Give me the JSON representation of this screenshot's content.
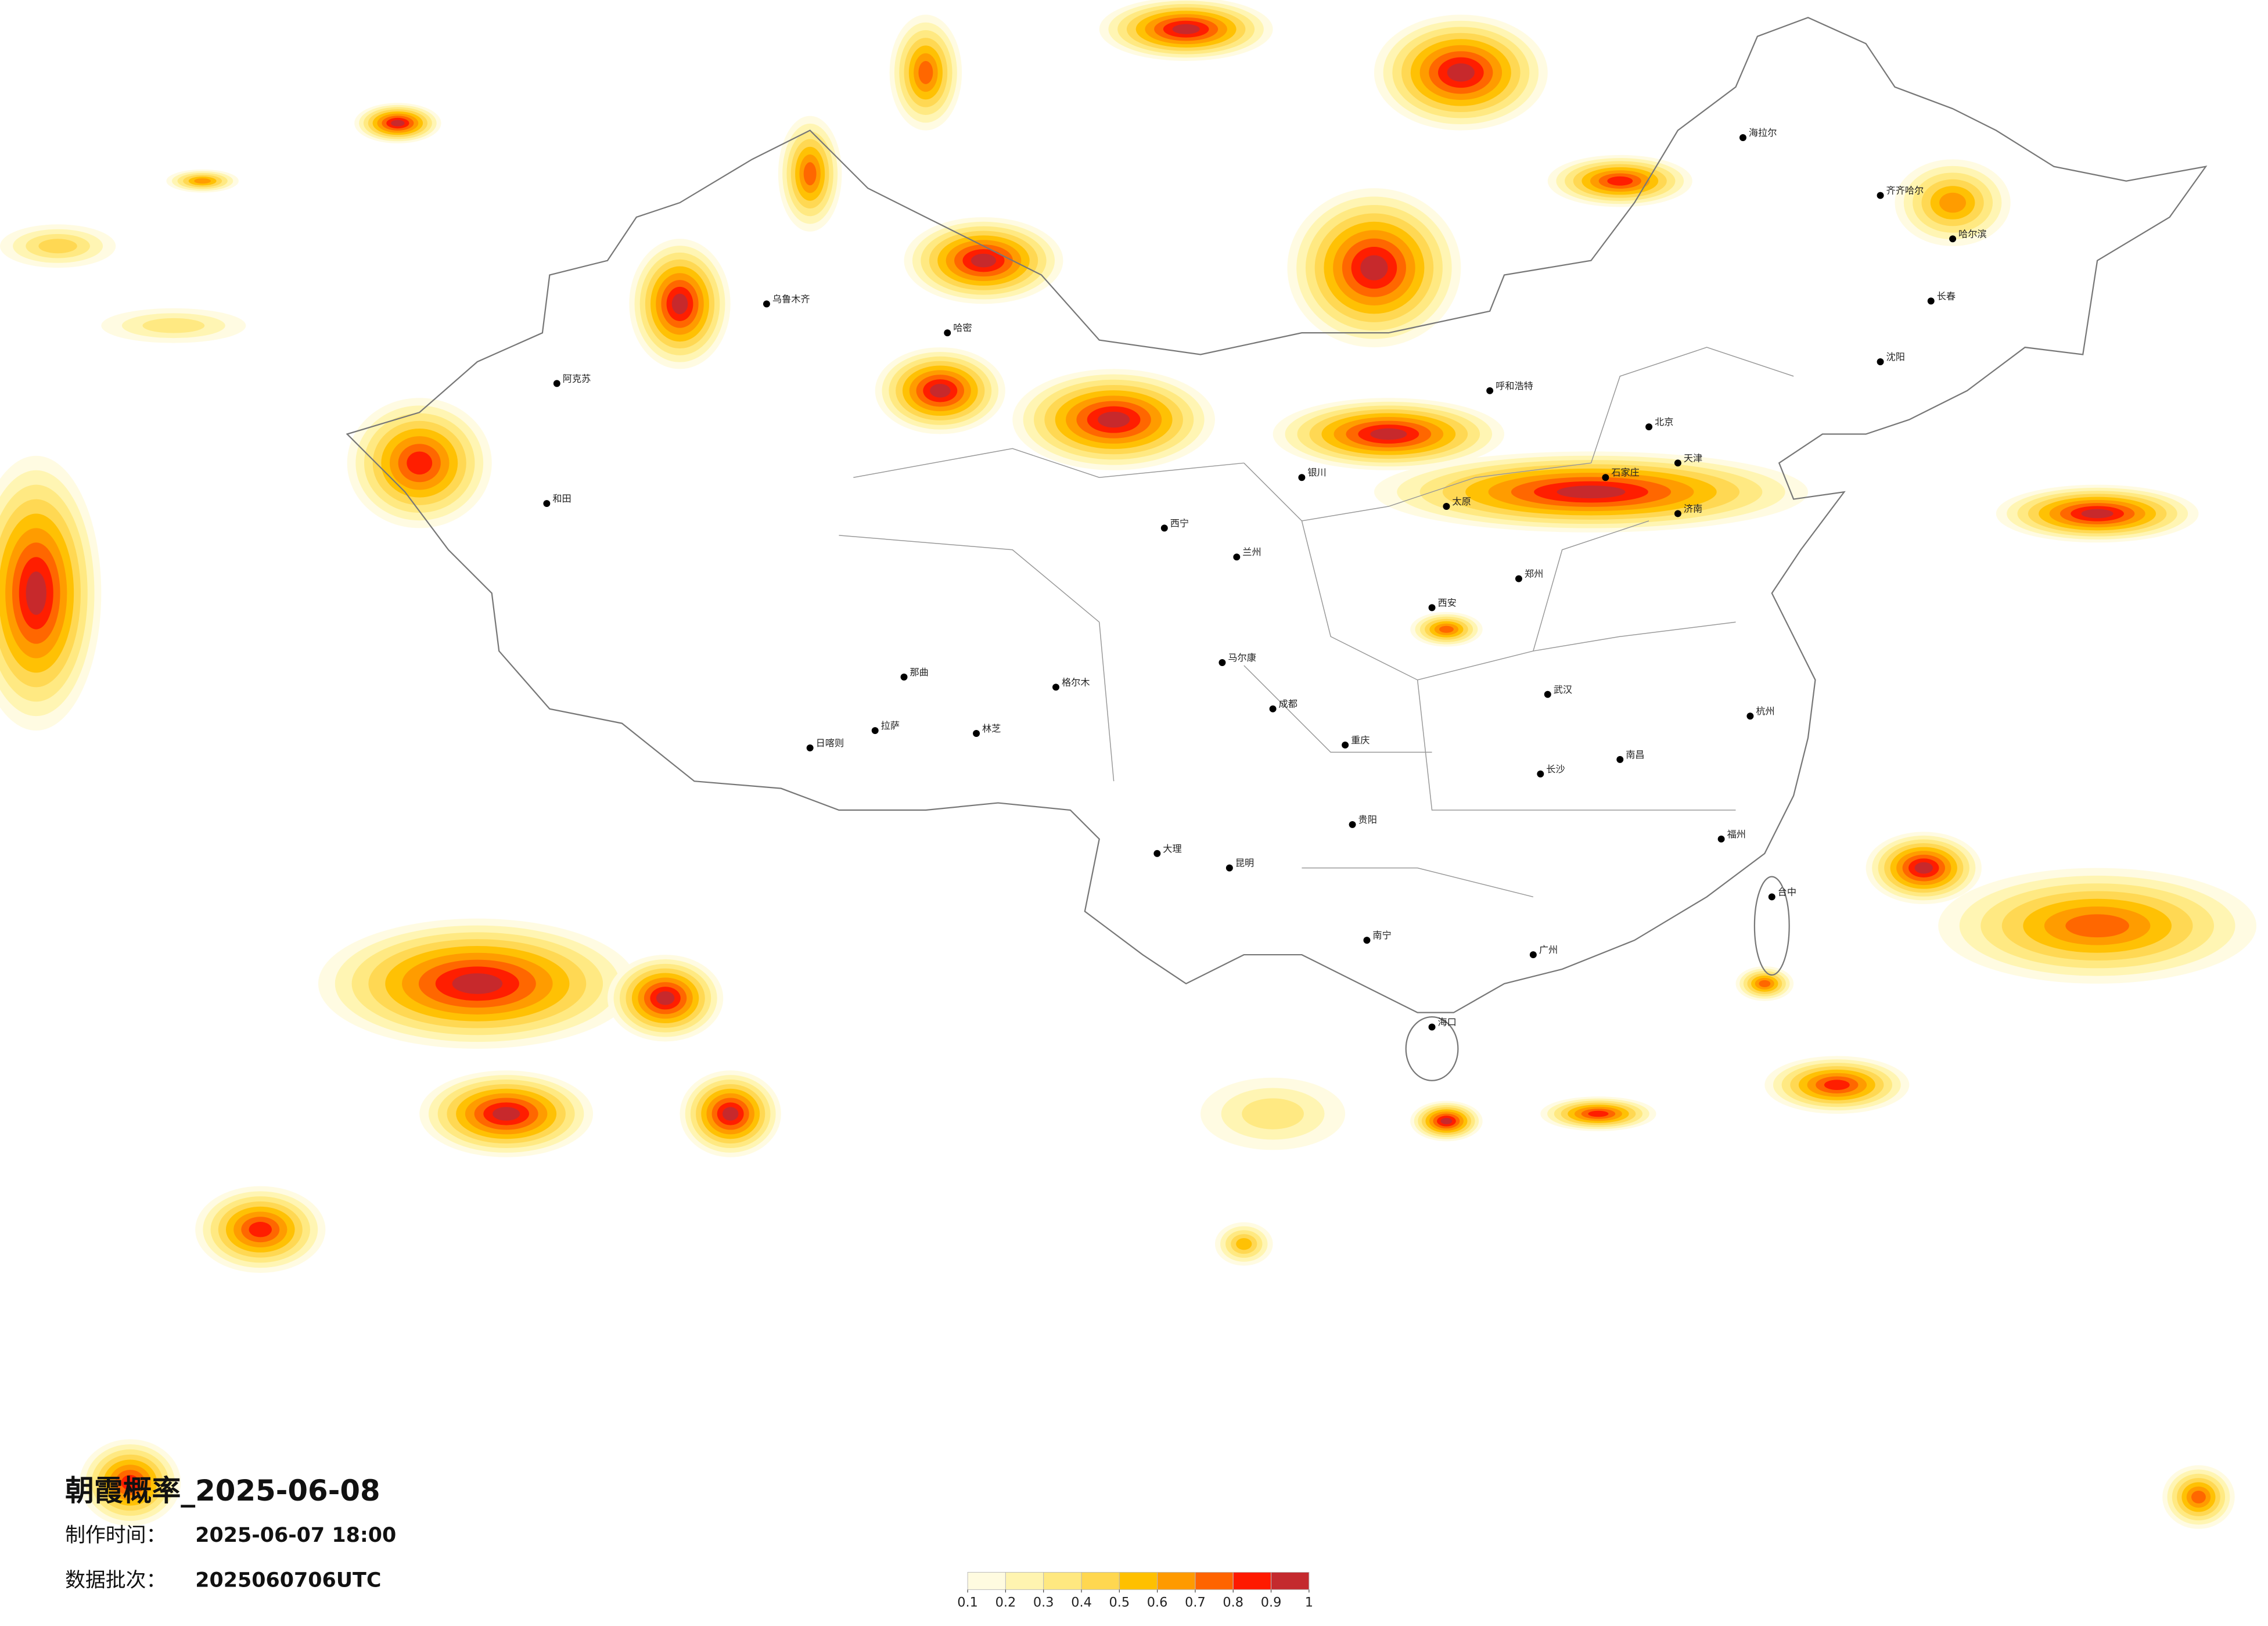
{
  "title": "朝霞概率_2025-06-08",
  "made_time": {
    "label": "制作时间：",
    "value": "2025-06-07 18:00"
  },
  "batch": {
    "label": "数据批次：",
    "value": "2025060706UTC"
  },
  "legend": {
    "ticks": [
      0.1,
      0.2,
      0.3,
      0.4,
      0.5,
      0.6,
      0.7,
      0.8,
      0.9,
      1
    ],
    "colors": [
      "#fffbe0",
      "#fff4b0",
      "#ffe880",
      "#ffd750",
      "#ffc000",
      "#ff9a00",
      "#ff6400",
      "#ff1a00",
      "#c42a2e"
    ]
  },
  "cities": [
    "北京",
    "天津",
    "石家庄",
    "济南",
    "郑州",
    "武汉",
    "长沙",
    "南昌",
    "杭州",
    "福州",
    "广州",
    "南宁",
    "昆明",
    "贵阳",
    "成都",
    "重庆",
    "海口",
    "台中",
    "西宁",
    "兰州",
    "呼和浩特",
    "哈尔滨",
    "长春",
    "沈阳",
    "海拉尔",
    "齐齐哈尔",
    "乌鲁木齐",
    "哈密",
    "阿克苏",
    "和田",
    "拉萨",
    "日喀则",
    "那曲",
    "林芝",
    "马尔康",
    "大理",
    "格尔木",
    "银川",
    "太原",
    "西安"
  ]
}
